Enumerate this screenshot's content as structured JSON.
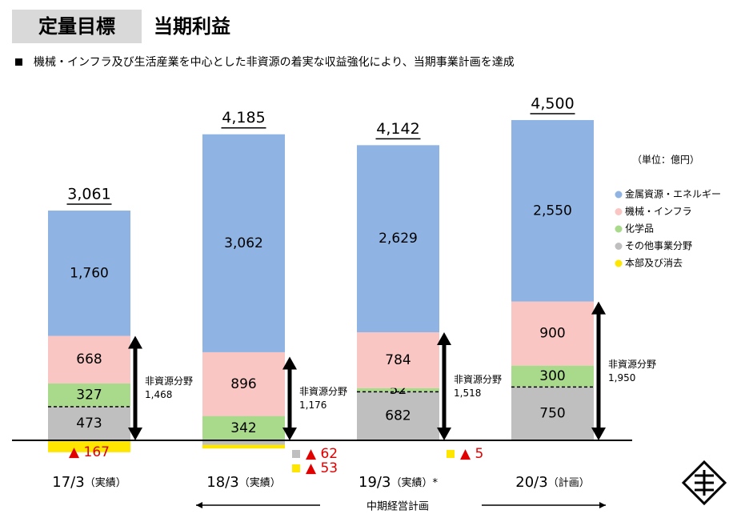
{
  "header": {
    "tag": "定量目標",
    "title": "当期利益"
  },
  "bullet": "機械・インフラ及び生活産業を中心とした非資源の着実な収益強化により、当期事業計画を達成",
  "chart_data": {
    "type": "bar",
    "stacked": true,
    "unit": "（単位：億円）",
    "categories": [
      "17/3",
      "18/3",
      "19/3",
      "20/3"
    ],
    "category_notes": [
      "（実績）",
      "（実績）",
      "（実績）*",
      "（計画）"
    ],
    "series": [
      {
        "name": "その他事業分野",
        "color": "#bfbfbf",
        "values": [
          473,
          -62,
          682,
          750
        ],
        "value_labels": [
          "473",
          "▲ 62",
          "682",
          "750"
        ]
      },
      {
        "name": "化学品",
        "color": "#a9d98a",
        "values": [
          327,
          342,
          52,
          300
        ],
        "value_labels": [
          "327",
          "342",
          "52",
          "300"
        ]
      },
      {
        "name": "機械・インフラ",
        "color": "#f9c6c3",
        "values": [
          668,
          896,
          784,
          900
        ],
        "value_labels": [
          "668",
          "896",
          "784",
          "900"
        ]
      },
      {
        "name": "金属資源・エネルギー",
        "color": "#8fb4e3",
        "values": [
          1760,
          3062,
          2629,
          2550
        ],
        "value_labels": [
          "1,760",
          "3,062",
          "2,629",
          "2,550"
        ]
      },
      {
        "name": "本部及び消去",
        "color": "#ffe600",
        "values": [
          -167,
          -53,
          -5,
          null
        ],
        "value_labels": [
          "▲ 167",
          "▲ 53",
          "▲ 5",
          null
        ]
      }
    ],
    "legend_order": [
      3,
      2,
      1,
      0,
      4
    ],
    "totals": [
      3061,
      4185,
      4142,
      4500
    ],
    "total_labels": [
      "3,061",
      "4,185",
      "4,142",
      "4,500"
    ],
    "non_resource": {
      "label": "非資源分野",
      "values": [
        1468,
        1176,
        1518,
        1950
      ],
      "value_labels": [
        "1,468",
        "1,176",
        "1,518",
        "1,950"
      ]
    },
    "ylim": [
      -300,
      4800
    ],
    "period": "中期経営計画"
  }
}
